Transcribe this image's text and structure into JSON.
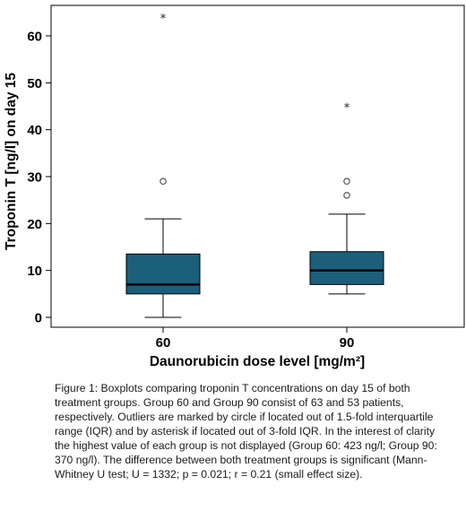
{
  "chart_data": {
    "type": "boxplot",
    "xlabel": "Daunorubicin dose level [mg/m²]",
    "ylabel": "Troponin T [ng/l] on day 15",
    "ylim": [
      0,
      66
    ],
    "yticks": [
      0,
      10,
      20,
      30,
      40,
      50,
      60
    ],
    "grid": false,
    "legend": "none",
    "box_color": "#1c5f7a",
    "groups": [
      {
        "category": "60",
        "whisker_low": 0,
        "q1": 5,
        "median": 7,
        "q3": 13.5,
        "whisker_high": 21,
        "outliers_circle": [
          29
        ],
        "outliers_star": [
          64
        ]
      },
      {
        "category": "90",
        "whisker_low": 5,
        "q1": 7,
        "median": 10,
        "q3": 14,
        "whisker_high": 22,
        "outliers_circle": [
          26,
          29
        ],
        "outliers_star": [
          45
        ]
      }
    ]
  },
  "caption": "Figure 1: Boxplots comparing troponin T concentrations on day 15 of both treatment groups. Group 60 and Group 90 consist of 63 and 53 patients, respectively. Outliers are marked by circle if located out of 1.5-fold interquartile range (IQR) and by asterisk if located out of 3-fold IQR. In the interest of clarity the highest value of each group is not displayed (Group 60: 423 ng/l; Group 90: 370 ng/l). The difference between both treatment groups is significant (Mann-Whitney U test; U = 1332; p = 0.021; r = 0.21 (small effect size)."
}
